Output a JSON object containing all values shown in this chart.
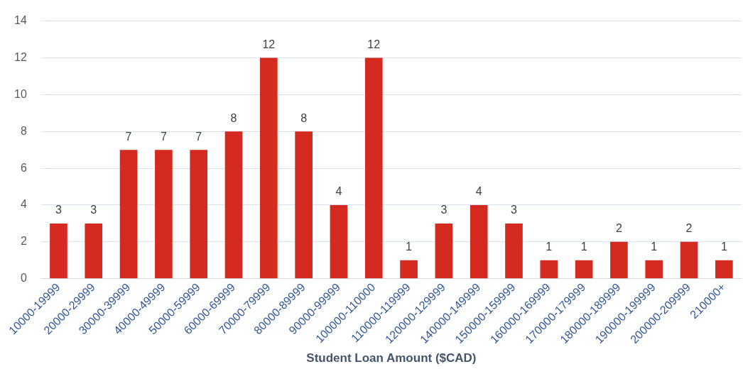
{
  "chart_data": {
    "type": "bar",
    "xlabel": "Student Loan Amount ($CAD)",
    "categories": [
      "10000-19999",
      "20000-29999",
      "30000-39999",
      "40000-49999",
      "50000-59999",
      "60000-69999",
      "70000-79999",
      "80000-89999",
      "90000-99999",
      "100000-110000",
      "110000-119999",
      "120000-129999",
      "140000-149999",
      "150000-159999",
      "160000-169999",
      "170000-179999",
      "180000-189999",
      "190000-199999",
      "200000-209999",
      "210000+"
    ],
    "values": [
      3,
      3,
      7,
      7,
      7,
      8,
      12,
      8,
      4,
      12,
      1,
      3,
      4,
      3,
      1,
      1,
      2,
      1,
      2,
      1
    ],
    "color": "#d42a20",
    "ylim": [
      0,
      14
    ],
    "yticks": [
      0,
      2,
      4,
      6,
      8,
      10,
      12,
      14
    ],
    "grid": "y",
    "data_labels": true
  }
}
